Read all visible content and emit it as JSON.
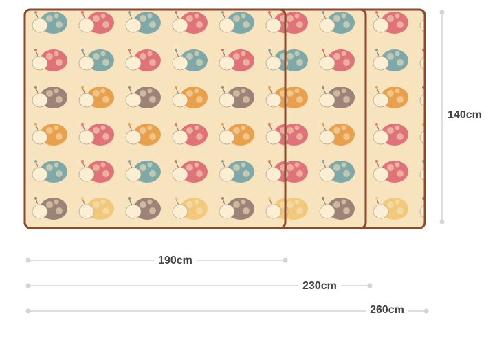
{
  "dimensions": {
    "height": "140cm",
    "widths": [
      "190cm",
      "230cm",
      "260cm"
    ]
  }
}
